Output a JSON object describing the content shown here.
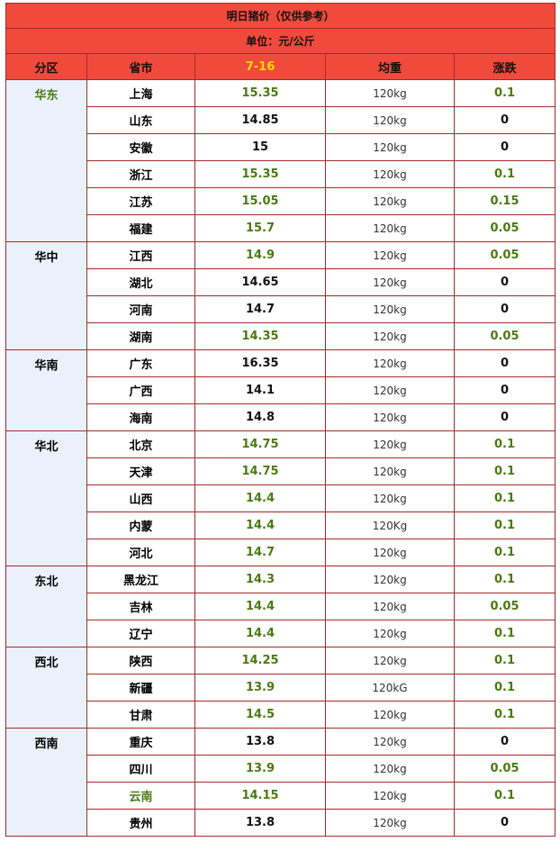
{
  "title": "明日猪价（仅供参考）",
  "unit": "单位：元/公斤",
  "headers": [
    "分区",
    "省市",
    "7-16",
    "均重",
    "涨跌"
  ],
  "groups": [
    {
      "region": "华东",
      "rows": [
        {
          "province": "上海",
          "price": "15.35",
          "weight": "120kg",
          "change": "0.1"
        },
        {
          "province": "山东",
          "price": "14.85",
          "weight": "120kg",
          "change": "0"
        },
        {
          "province": "安徽",
          "price": "15",
          "weight": "120kg",
          "change": "0"
        },
        {
          "province": "浙江",
          "price": "15.35",
          "weight": "120kg",
          "change": "0.1"
        },
        {
          "province": "江苏",
          "price": "15.05",
          "weight": "120kg",
          "change": "0.15"
        },
        {
          "province": "福建",
          "price": "15.7",
          "weight": "120kg",
          "change": "0.05"
        }
      ]
    },
    {
      "region": "华中",
      "rows": [
        {
          "province": "江西",
          "price": "14.9",
          "weight": "120kg",
          "change": "0.05"
        },
        {
          "province": "湖北",
          "price": "14.65",
          "weight": "120kg",
          "change": "0"
        },
        {
          "province": "河南",
          "price": "14.7",
          "weight": "120kg",
          "change": "0"
        },
        {
          "province": "湖南",
          "price": "14.35",
          "weight": "120kg",
          "change": "0.05"
        }
      ]
    },
    {
      "region": "华南",
      "rows": [
        {
          "province": "广东",
          "price": "16.35",
          "weight": "120kg",
          "change": "0"
        },
        {
          "province": "广西",
          "price": "14.1",
          "weight": "120kg",
          "change": "0"
        },
        {
          "province": "海南",
          "price": "14.8",
          "weight": "120kg",
          "change": "0"
        }
      ]
    },
    {
      "region": "华北",
      "rows": [
        {
          "province": "北京",
          "price": "14.75",
          "weight": "120kg",
          "change": "0.1"
        },
        {
          "province": "天津",
          "price": "14.75",
          "weight": "120kg",
          "change": "0.1"
        },
        {
          "province": "山西",
          "price": "14.4",
          "weight": "120kg",
          "change": "0.1"
        },
        {
          "province": "内蒙",
          "price": "14.4",
          "weight": "120Kg",
          "change": "0.1"
        },
        {
          "province": "河北",
          "price": "14.7",
          "weight": "120kg",
          "change": "0.1"
        }
      ]
    },
    {
      "region": "东北",
      "rows": [
        {
          "province": "黑龙江",
          "price": "14.3",
          "weight": "120kg",
          "change": "0.1"
        },
        {
          "province": "吉林",
          "price": "14.4",
          "weight": "120kg",
          "change": "0.05"
        },
        {
          "province": "辽宁",
          "price": "14.4",
          "weight": "120kg",
          "change": "0.1"
        }
      ]
    },
    {
      "region": "西北",
      "rows": [
        {
          "province": "陕西",
          "price": "14.25",
          "weight": "120kg",
          "change": "0.1"
        },
        {
          "province": "新疆",
          "price": "13.9",
          "weight": "120kG",
          "change": "0.1"
        },
        {
          "province": "甘肃",
          "price": "14.5",
          "weight": "120kg",
          "change": "0.1"
        }
      ]
    },
    {
      "region": "西南",
      "rows": [
        {
          "province": "重庆",
          "price": "13.8",
          "weight": "120kg",
          "change": "0"
        },
        {
          "province": "四川",
          "price": "13.9",
          "weight": "120kg",
          "change": "0.05"
        },
        {
          "province": "云南",
          "price": "14.15",
          "weight": "120kg",
          "change": "0.1"
        },
        {
          "province": "贵州",
          "price": "13.8",
          "weight": "120kg",
          "change": "0"
        }
      ]
    }
  ],
  "colors": {
    "header_bg": "#f04a3c",
    "date_header": "#ffd700",
    "up": "#4a7a12",
    "flat": "#111111",
    "highlight_weight": "#c0392b",
    "region_bg": "#eaf1fb"
  },
  "highlighted_weights": [
    "福建",
    "广东",
    "重庆"
  ],
  "green_labels": [
    "华东",
    "云南"
  ]
}
